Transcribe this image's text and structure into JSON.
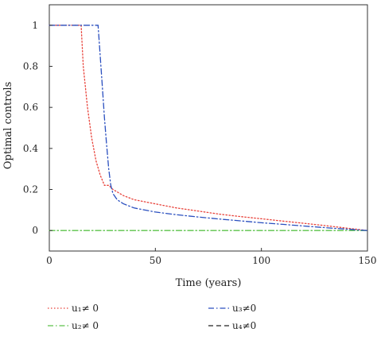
{
  "chart_data": {
    "type": "line",
    "xlabel": "Time (years)",
    "ylabel": "Optimal controls",
    "xlim": [
      0,
      150
    ],
    "ylim": [
      -0.1,
      1.1
    ],
    "xticks": [
      0,
      50,
      100,
      150
    ],
    "yticks": [
      0,
      0.2,
      0.4,
      0.6,
      0.8,
      1
    ],
    "legend_position": "bottom",
    "series": [
      {
        "name": "u₁≠ 0",
        "color": "#e8423a",
        "style": "dotted",
        "x": [
          0,
          15,
          16,
          18,
          20,
          22,
          24,
          26,
          28,
          30,
          35,
          40,
          50,
          60,
          70,
          80,
          90,
          100,
          110,
          120,
          130,
          140,
          150
        ],
        "y": [
          1,
          1,
          0.8,
          0.6,
          0.45,
          0.34,
          0.27,
          0.22,
          0.22,
          0.2,
          0.17,
          0.15,
          0.13,
          0.11,
          0.095,
          0.08,
          0.068,
          0.057,
          0.046,
          0.035,
          0.024,
          0.012,
          0
        ]
      },
      {
        "name": "u₂≠ 0",
        "color": "#5cc24a",
        "style": "dashdot",
        "x": [
          0,
          150
        ],
        "y": [
          0,
          0
        ]
      },
      {
        "name": "u₃≠0",
        "color": "#2a4fbf",
        "style": "dashdot",
        "x": [
          0,
          23,
          24,
          25,
          26,
          27,
          28,
          29,
          30,
          32,
          35,
          40,
          50,
          60,
          70,
          80,
          90,
          100,
          110,
          120,
          130,
          140,
          150
        ],
        "y": [
          1,
          1,
          0.85,
          0.7,
          0.55,
          0.42,
          0.3,
          0.22,
          0.18,
          0.15,
          0.13,
          0.11,
          0.09,
          0.077,
          0.066,
          0.056,
          0.047,
          0.038,
          0.03,
          0.022,
          0.014,
          0.007,
          0
        ]
      },
      {
        "name": "u₄≠0",
        "color": "#222222",
        "style": "dashed",
        "x": [],
        "y": []
      }
    ]
  }
}
